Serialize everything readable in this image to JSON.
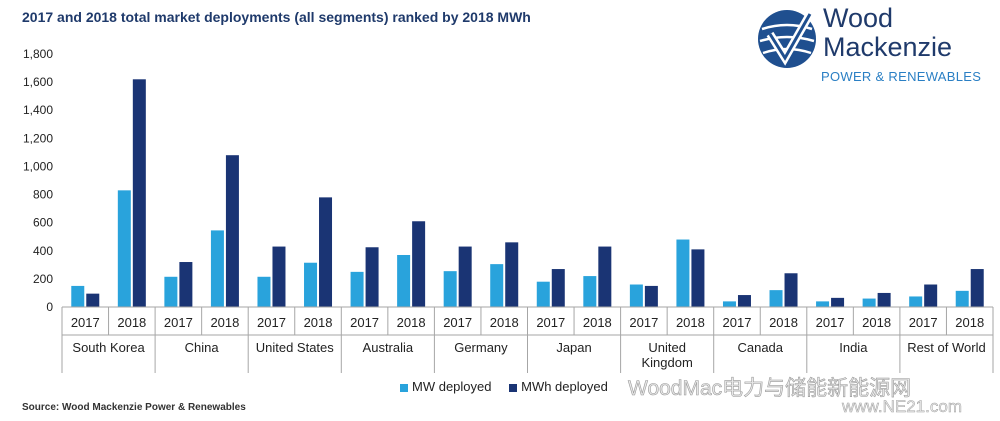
{
  "title": "2017 and 2018 total market deployments (all segments) ranked by 2018 MWh",
  "brand": {
    "name_line1": "Wood",
    "name_line2": "Mackenzie",
    "subtitle": "POWER & RENEWABLES",
    "logo_icon": "checkmark-globe-icon"
  },
  "source": "Source: Wood Mackenzie Power & Renewables",
  "watermark": {
    "text": "WoodMac电力与储能新能源网",
    "url": "www.NE21.com"
  },
  "colors": {
    "mw": "#29a3dc",
    "mwh": "#1a3474",
    "axis": "#a6a6a6",
    "text": "#222222",
    "title": "#1f3a6b"
  },
  "chart_data": {
    "type": "bar",
    "ylim": [
      0,
      1800
    ],
    "yticks": [
      "0",
      "200",
      "400",
      "600",
      "800",
      "1,000",
      "1,200",
      "1,400",
      "1,600",
      "1,800"
    ],
    "ytick_values": [
      0,
      200,
      400,
      600,
      800,
      1000,
      1200,
      1400,
      1600,
      1800
    ],
    "groups": [
      "South Korea",
      "China",
      "United States",
      "Australia",
      "Germany",
      "Japan",
      "United Kingdom",
      "Canada",
      "India",
      "Rest of World"
    ],
    "years": [
      "2017",
      "2018"
    ],
    "series": [
      {
        "name": "MW deployed",
        "values": [
          [
            150,
            830
          ],
          [
            215,
            545
          ],
          [
            215,
            315
          ],
          [
            250,
            370
          ],
          [
            255,
            305
          ],
          [
            180,
            220
          ],
          [
            160,
            480
          ],
          [
            40,
            120
          ],
          [
            40,
            60
          ],
          [
            75,
            115
          ]
        ]
      },
      {
        "name": "MWh deployed",
        "values": [
          [
            95,
            1620
          ],
          [
            320,
            1080
          ],
          [
            430,
            780
          ],
          [
            425,
            610
          ],
          [
            430,
            460
          ],
          [
            270,
            430
          ],
          [
            150,
            410
          ],
          [
            85,
            240
          ],
          [
            65,
            100
          ],
          [
            160,
            270
          ]
        ]
      }
    ]
  }
}
